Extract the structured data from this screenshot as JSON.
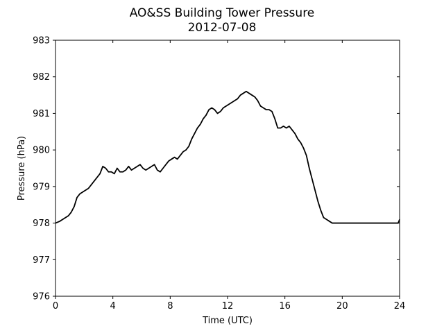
{
  "chart_data": {
    "type": "line",
    "title": "AO&SS Building Tower Pressure",
    "subtitle": "2012-07-08",
    "xlabel": "Time (UTC)",
    "ylabel": "Pressure (hPa)",
    "xlim": [
      0,
      24
    ],
    "ylim": [
      976,
      983
    ],
    "xticks": [
      0,
      4,
      8,
      12,
      16,
      20,
      24
    ],
    "yticks": [
      976,
      977,
      978,
      979,
      980,
      981,
      982,
      983
    ],
    "grid": false,
    "legend": "none",
    "line_color": "#000000",
    "series": [
      {
        "x": [
          0,
          0.3,
          0.5,
          0.7,
          0.9,
          1.1,
          1.3,
          1.5,
          1.7,
          1.9,
          2.1,
          2.3,
          2.5,
          2.7,
          2.9,
          3.1,
          3.3,
          3.5,
          3.7,
          3.9,
          4.1,
          4.3,
          4.5,
          4.7,
          4.9,
          5.1,
          5.3,
          5.5,
          5.7,
          5.9,
          6.1,
          6.3,
          6.5,
          6.7,
          6.9,
          7.1,
          7.3,
          7.5,
          7.7,
          7.9,
          8.1,
          8.3,
          8.5,
          8.7,
          8.9,
          9.1,
          9.3,
          9.5,
          9.7,
          9.9,
          10.1,
          10.3,
          10.5,
          10.7,
          10.9,
          11.1,
          11.3,
          11.5,
          11.7,
          11.9,
          12.1,
          12.3,
          12.5,
          12.7,
          12.9,
          13.1,
          13.3,
          13.5,
          13.7,
          13.9,
          14.1,
          14.3,
          14.5,
          14.7,
          14.9,
          15.1,
          15.3,
          15.5,
          15.7,
          15.9,
          16.1,
          16.3,
          16.5,
          16.7,
          16.9,
          17.1,
          17.3,
          17.5,
          17.7,
          17.9,
          18.1,
          18.3,
          18.5,
          18.7,
          18.9,
          19.1,
          19.3,
          19.5,
          19.7,
          19.9,
          20.1,
          20.3,
          20.5,
          20.7,
          20.9,
          21.1,
          21.3,
          21.5,
          21.7,
          21.9,
          22.1,
          22.3,
          22.5,
          22.7,
          22.9,
          23.1,
          23.3,
          23.5,
          23.7,
          23.9,
          24
        ],
        "y": [
          978.0,
          978.05,
          978.1,
          978.15,
          978.2,
          978.3,
          978.45,
          978.7,
          978.8,
          978.85,
          978.9,
          978.95,
          979.05,
          979.15,
          979.25,
          979.35,
          979.55,
          979.5,
          979.4,
          979.4,
          979.35,
          979.5,
          979.4,
          979.4,
          979.45,
          979.55,
          979.45,
          979.5,
          979.55,
          979.6,
          979.5,
          979.45,
          979.5,
          979.55,
          979.6,
          979.45,
          979.4,
          979.5,
          979.6,
          979.7,
          979.75,
          979.8,
          979.75,
          979.85,
          979.95,
          980.0,
          980.1,
          980.3,
          980.45,
          980.6,
          980.7,
          980.85,
          980.95,
          981.1,
          981.15,
          981.1,
          981.0,
          981.05,
          981.15,
          981.2,
          981.25,
          981.3,
          981.35,
          981.4,
          981.5,
          981.55,
          981.6,
          981.55,
          981.5,
          981.45,
          981.35,
          981.2,
          981.15,
          981.1,
          981.1,
          981.05,
          980.85,
          980.6,
          980.6,
          980.65,
          980.6,
          980.65,
          980.55,
          980.45,
          980.3,
          980.2,
          980.05,
          979.85,
          979.5,
          979.2,
          978.9,
          978.6,
          978.35,
          978.15,
          978.1,
          978.05,
          978.0,
          978.0,
          978.0,
          978.0,
          978.0,
          978.0,
          978.0,
          978.0,
          978.0,
          978.0,
          978.0,
          978.0,
          978.0,
          978.0,
          978.0,
          978.0,
          978.0,
          978.0,
          978.0,
          978.0,
          978.0,
          978.0,
          978.0,
          978.0,
          978.1
        ]
      }
    ]
  }
}
